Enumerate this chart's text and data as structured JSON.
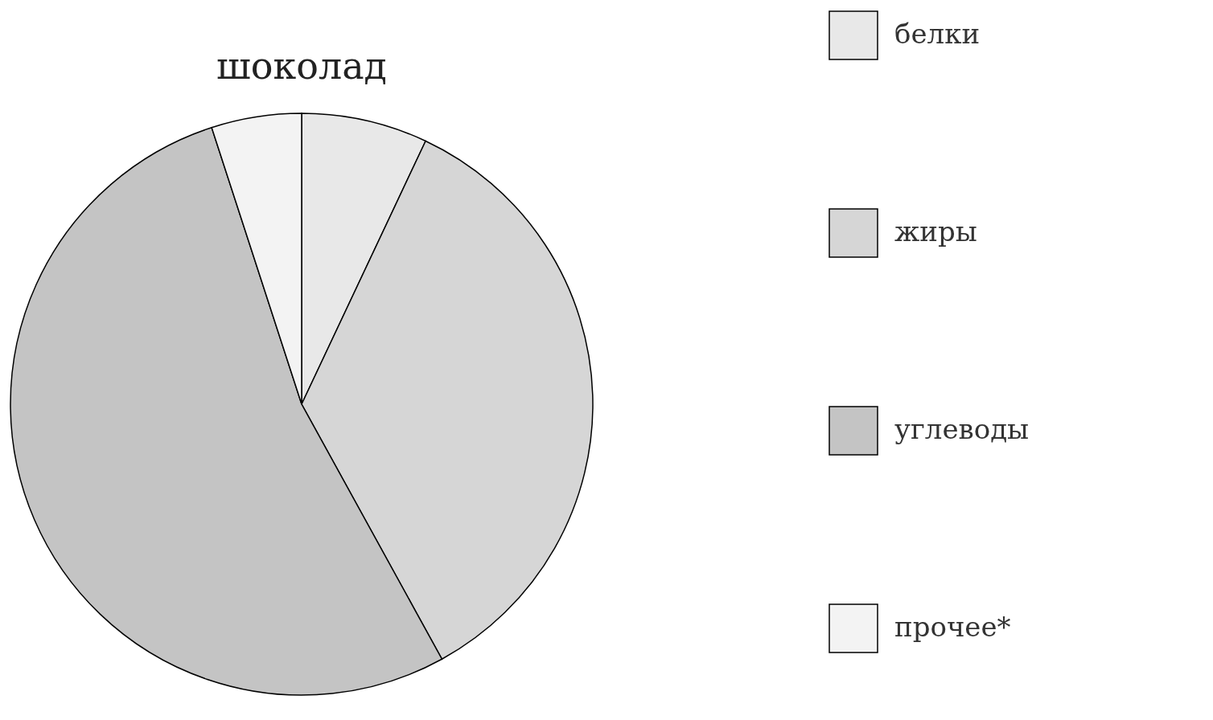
{
  "chart_data": {
    "type": "pie",
    "title": "шоколад",
    "categories": [
      "белки",
      "жиры",
      "углеводы",
      "прочее*"
    ],
    "values": [
      7,
      35,
      53,
      5
    ],
    "colors": [
      "#e8e8e8",
      "#d6d6d6",
      "#c4c4c4",
      "#f3f3f3"
    ],
    "legend": "right"
  }
}
